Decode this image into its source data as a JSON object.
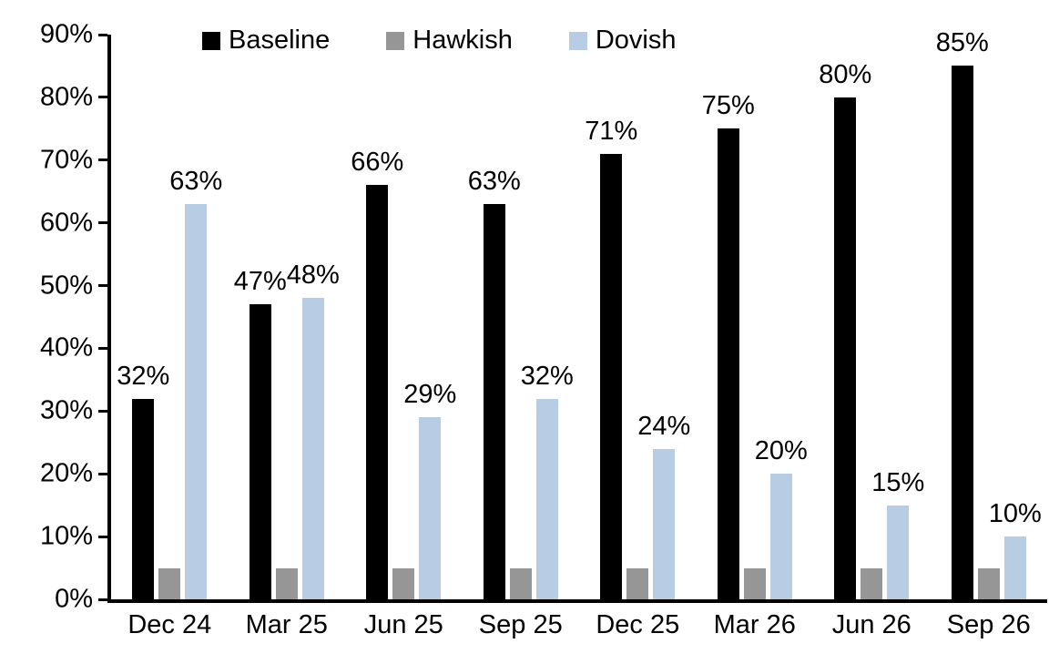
{
  "chart_data": {
    "type": "bar",
    "title": "",
    "xlabel": "",
    "ylabel": "",
    "categories": [
      "Dec 24",
      "Mar 25",
      "Jun 25",
      "Sep 25",
      "Dec 25",
      "Mar 26",
      "Jun 26",
      "Sep 26"
    ],
    "series": [
      {
        "name": "Baseline",
        "color": "#000000",
        "values": [
          32,
          47,
          66,
          63,
          71,
          75,
          80,
          85
        ],
        "labels": [
          "32%",
          "47%",
          "66%",
          "63%",
          "71%",
          "75%",
          "80%",
          "85%"
        ],
        "show_labels": true
      },
      {
        "name": "Hawkish",
        "color": "#969696",
        "values": [
          5,
          5,
          5,
          5,
          5,
          5,
          5,
          5
        ],
        "labels": [],
        "show_labels": false
      },
      {
        "name": "Dovish",
        "color": "#B8CCE4",
        "values": [
          63,
          48,
          29,
          32,
          24,
          20,
          15,
          10
        ],
        "labels": [
          "63%",
          "48%",
          "29%",
          "32%",
          "24%",
          "20%",
          "15%",
          "10%"
        ],
        "show_labels": true
      }
    ],
    "ylim": [
      0,
      90
    ],
    "ytick_step": 10,
    "ytick_labels": [
      "0%",
      "10%",
      "20%",
      "30%",
      "40%",
      "50%",
      "60%",
      "70%",
      "80%",
      "90%"
    ],
    "legend_position": "top-inside",
    "grid": false,
    "background_color": "#ffffff",
    "axis_color": "#000000"
  }
}
